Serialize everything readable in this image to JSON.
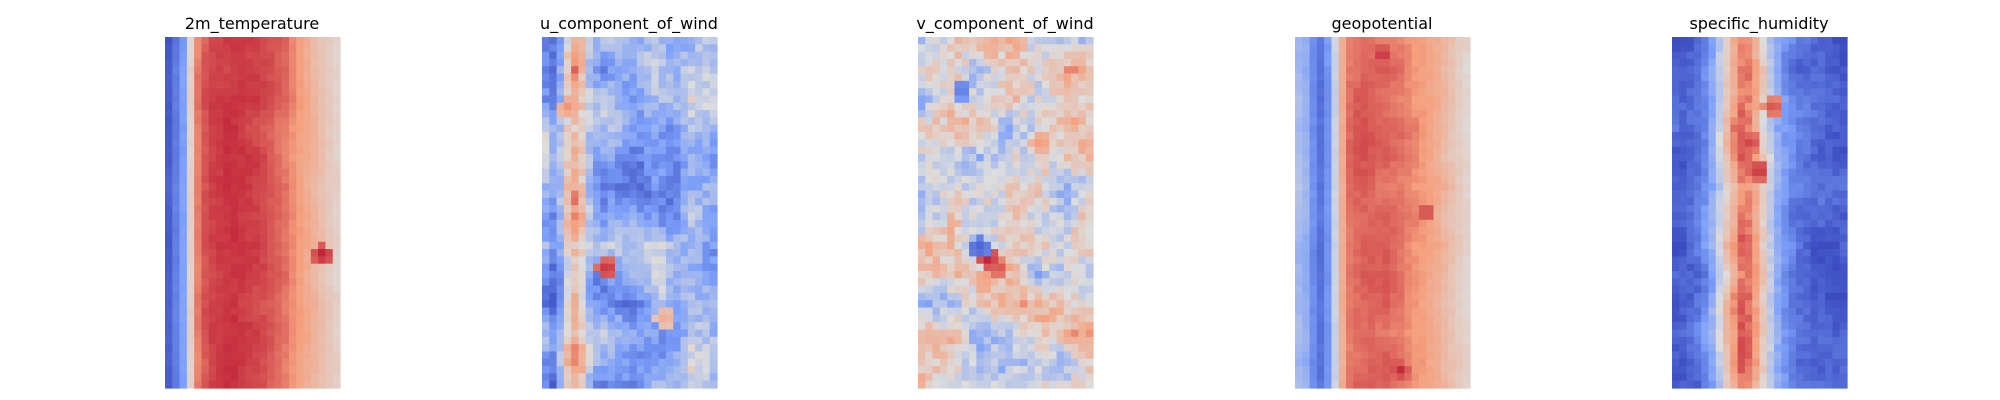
{
  "chart_data": [
    {
      "type": "heatmap",
      "title": "2m_temperature",
      "colormap": "coolwarm",
      "axes": "off",
      "grid": false,
      "profile": [
        0.05,
        0.15,
        0.25,
        0.55,
        0.8,
        0.87,
        0.9,
        0.91,
        0.92,
        0.92,
        0.91,
        0.9,
        0.89,
        0.88,
        0.86,
        0.84,
        0.82,
        0.78,
        0.74,
        0.7,
        0.66,
        0.62,
        0.58,
        0.55
      ],
      "noise": 0.04,
      "hot_spots": [
        [
          0.62,
          0.9,
          0.97
        ]
      ],
      "cold_spots": []
    },
    {
      "type": "heatmap",
      "title": "u_component_of_wind",
      "colormap": "coolwarm",
      "axes": "off",
      "grid": false,
      "profile": [
        0.3,
        0.22,
        0.35,
        0.6,
        0.72,
        0.62,
        0.42,
        0.32,
        0.3,
        0.32,
        0.3,
        0.26,
        0.24,
        0.26,
        0.3,
        0.34,
        0.32,
        0.28,
        0.3,
        0.36,
        0.42,
        0.4,
        0.36,
        0.32
      ],
      "noise": 0.24,
      "hot_spots": [
        [
          0.66,
          0.37,
          0.95
        ],
        [
          0.2,
          0.15,
          0.78
        ],
        [
          0.8,
          0.7,
          0.72
        ]
      ],
      "cold_spots": [
        [
          0.45,
          0.6,
          0.08
        ]
      ]
    },
    {
      "type": "heatmap",
      "title": "v_component_of_wind",
      "colormap": "coolwarm",
      "axes": "off",
      "grid": false,
      "profile": [
        0.5,
        0.52,
        0.5,
        0.48,
        0.5,
        0.52,
        0.5,
        0.48,
        0.5,
        0.52,
        0.5,
        0.48,
        0.5,
        0.52,
        0.5,
        0.48,
        0.5,
        0.52,
        0.5,
        0.48,
        0.5,
        0.52,
        0.5,
        0.48
      ],
      "noise": 0.32,
      "hot_spots": [
        [
          0.63,
          0.4,
          0.97
        ],
        [
          0.66,
          0.46,
          0.9
        ],
        [
          0.3,
          0.7,
          0.78
        ]
      ],
      "cold_spots": [
        [
          0.6,
          0.35,
          0.05
        ],
        [
          0.15,
          0.25,
          0.12
        ]
      ]
    },
    {
      "type": "heatmap",
      "title": "geopotential",
      "colormap": "coolwarm",
      "axes": "off",
      "grid": false,
      "profile": [
        0.36,
        0.32,
        0.2,
        0.12,
        0.22,
        0.45,
        0.7,
        0.82,
        0.84,
        0.85,
        0.85,
        0.84,
        0.84,
        0.83,
        0.82,
        0.8,
        0.78,
        0.76,
        0.73,
        0.7,
        0.66,
        0.62,
        0.58,
        0.55
      ],
      "noise": 0.05,
      "hot_spots": [
        [
          0.05,
          0.5,
          0.95
        ],
        [
          0.95,
          0.6,
          0.95
        ],
        [
          0.5,
          0.75,
          0.92
        ]
      ],
      "cold_spots": []
    },
    {
      "type": "heatmap",
      "title": "specific_humidity",
      "colormap": "coolwarm",
      "axes": "off",
      "grid": false,
      "profile": [
        0.04,
        0.05,
        0.08,
        0.12,
        0.2,
        0.3,
        0.45,
        0.6,
        0.72,
        0.82,
        0.8,
        0.7,
        0.55,
        0.4,
        0.28,
        0.2,
        0.14,
        0.1,
        0.08,
        0.06,
        0.05,
        0.04,
        0.04,
        0.04
      ],
      "noise": 0.12,
      "hot_spots": [
        [
          0.38,
          0.5,
          0.95
        ],
        [
          0.2,
          0.58,
          0.9
        ],
        [
          0.3,
          0.45,
          0.92
        ]
      ],
      "cold_spots": []
    }
  ]
}
